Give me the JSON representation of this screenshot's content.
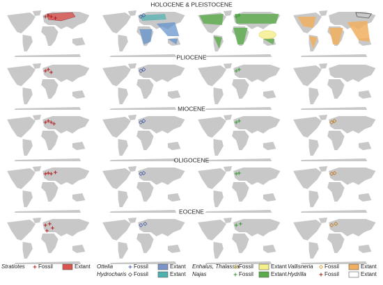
{
  "periods": [
    "HOLOCENE & PLEISTOCENE",
    "PLIOCENE",
    "MIOCENE",
    "OLIGOCENE",
    "EOCENE"
  ],
  "legend": [
    {
      "taxa": [
        "Stratiotes"
      ],
      "fossil": [
        "Fossil"
      ],
      "extant": [
        "Extant"
      ]
    },
    {
      "taxa": [
        "Ottelia",
        "Hydrocharis"
      ],
      "fossil": [
        "Fossil",
        "Fossil"
      ],
      "extant": [
        "Extant",
        "Extant"
      ]
    },
    {
      "taxa": [
        "Enhalus, Thalassia",
        "Najas"
      ],
      "fossil": [
        "Fossil",
        "Fossil"
      ],
      "extant": [
        "Extant",
        "Extant"
      ]
    },
    {
      "taxa": [
        "Vallisneria",
        "Hydrilla"
      ],
      "fossil": [
        "Fossil",
        "Fossil"
      ],
      "extant": [
        "Extant",
        "Extant"
      ]
    }
  ]
}
